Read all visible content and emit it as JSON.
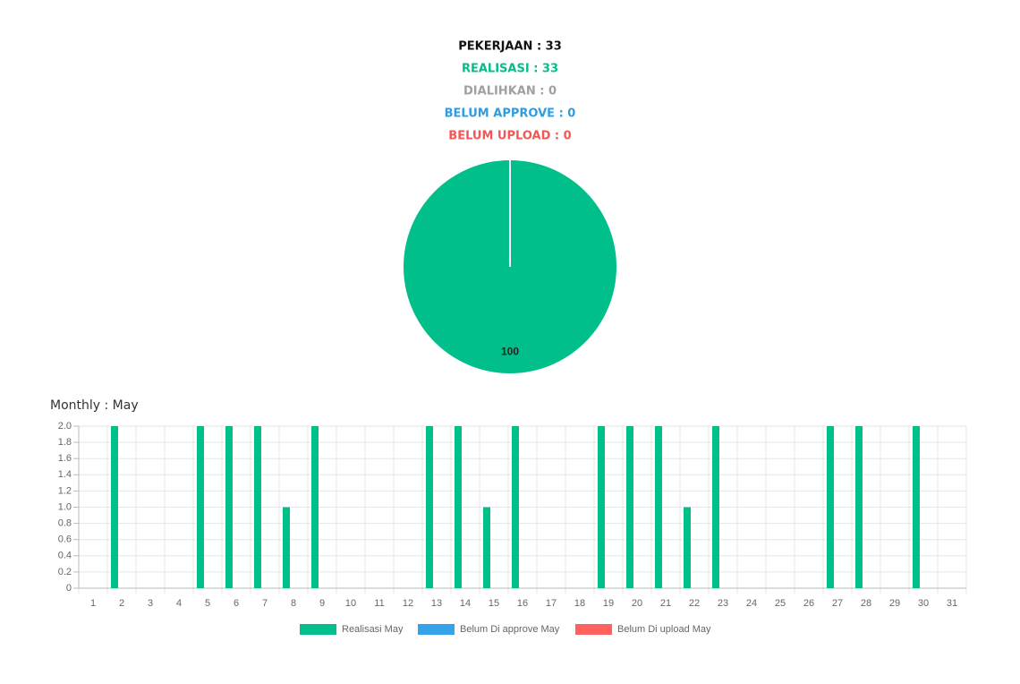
{
  "chart_data": [
    {
      "type": "pie",
      "header_lines": [
        {
          "text": "PEKERJAAN : 33",
          "color": "#111111"
        },
        {
          "text": "REALISASI : 33",
          "color": "#00bf8a"
        },
        {
          "text": "DIALIHKAN : 0",
          "color": "#a0a0a0"
        },
        {
          "text": "BELUM APPROVE : 0",
          "color": "#2d9ee0"
        },
        {
          "text": "BELUM UPLOAD : 0",
          "color": "#f25757"
        }
      ],
      "values": [
        100
      ],
      "colors": [
        "#00bf8a"
      ]
    },
    {
      "type": "bar",
      "title": "Monthly : May",
      "categories": [
        "1",
        "2",
        "3",
        "4",
        "5",
        "6",
        "7",
        "8",
        "9",
        "10",
        "11",
        "12",
        "13",
        "14",
        "15",
        "16",
        "17",
        "18",
        "19",
        "20",
        "21",
        "22",
        "23",
        "24",
        "25",
        "26",
        "27",
        "28",
        "29",
        "30",
        "31"
      ],
      "series": [
        {
          "name": "Realisasi May",
          "color": "#00bf8a",
          "values": [
            0,
            2,
            0,
            0,
            2,
            2,
            2,
            1,
            2,
            0,
            0,
            0,
            2,
            2,
            1,
            2,
            0,
            0,
            2,
            2,
            2,
            1,
            2,
            0,
            0,
            0,
            2,
            2,
            0,
            2,
            0
          ]
        },
        {
          "name": "Belum Di approve May",
          "color": "#36a2eb",
          "values": [
            0,
            0,
            0,
            0,
            0,
            0,
            0,
            0,
            0,
            0,
            0,
            0,
            0,
            0,
            0,
            0,
            0,
            0,
            0,
            0,
            0,
            0,
            0,
            0,
            0,
            0,
            0,
            0,
            0,
            0,
            0
          ]
        },
        {
          "name": "Belum Di upload May",
          "color": "#ff6060",
          "values": [
            0,
            0,
            0,
            0,
            0,
            0,
            0,
            0,
            0,
            0,
            0,
            0,
            0,
            0,
            0,
            0,
            0,
            0,
            0,
            0,
            0,
            0,
            0,
            0,
            0,
            0,
            0,
            0,
            0,
            0,
            0
          ]
        }
      ],
      "ylim": [
        0,
        2
      ],
      "yticks": [
        0,
        0.2,
        0.4,
        0.6,
        0.8,
        {
          "value": 1,
          "label": "1.0"
        },
        1.2,
        1.4,
        1.6,
        1.8,
        {
          "value": 2,
          "label": "2.0"
        }
      ],
      "grid": true
    }
  ]
}
